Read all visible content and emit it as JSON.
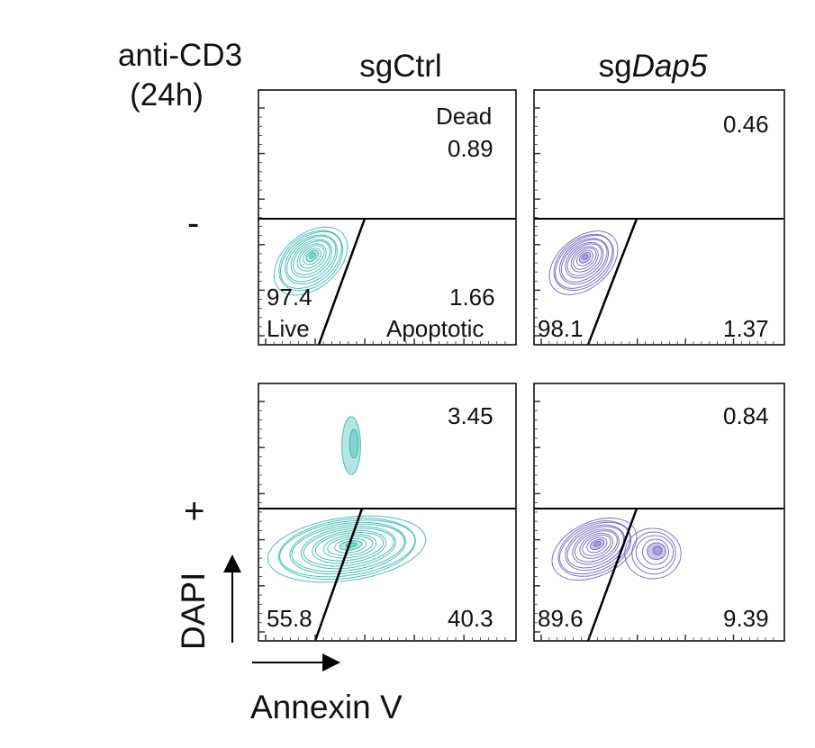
{
  "condition_label": "anti-CD3",
  "condition_sublabel": "(24h)",
  "columns": [
    {
      "prefix": "sg",
      "name": "Ctrl",
      "italic": false
    },
    {
      "prefix": "sg",
      "name": "Dap5",
      "italic": true
    }
  ],
  "rows": [
    "-",
    "+"
  ],
  "colors": {
    "sgCtrl": "#2bb5ad",
    "sgDap5": "#6a5bbd"
  },
  "gate_labels": {
    "dead": "Dead",
    "live": "Live",
    "apoptotic": "Apoptotic"
  },
  "xlabel": "Annexin V",
  "ylabel": "DAPI",
  "chart_data": {
    "type": "contour",
    "x_axis": "Annexin V",
    "y_axis": "DAPI",
    "gates": [
      "Dead",
      "Live",
      "Apoptotic"
    ],
    "panels": [
      {
        "row": "-",
        "column": "sgCtrl",
        "dead": "0.89",
        "live": "97.4",
        "apoptotic": "1.66"
      },
      {
        "row": "-",
        "column": "sgDap5",
        "dead": "0.46",
        "live": "98.1",
        "apoptotic": "1.37"
      },
      {
        "row": "+",
        "column": "sgCtrl",
        "dead": "3.45",
        "live": "55.8",
        "apoptotic": "40.3"
      },
      {
        "row": "+",
        "column": "sgDap5",
        "dead": "0.84",
        "live": "89.6",
        "apoptotic": "9.39"
      }
    ]
  }
}
